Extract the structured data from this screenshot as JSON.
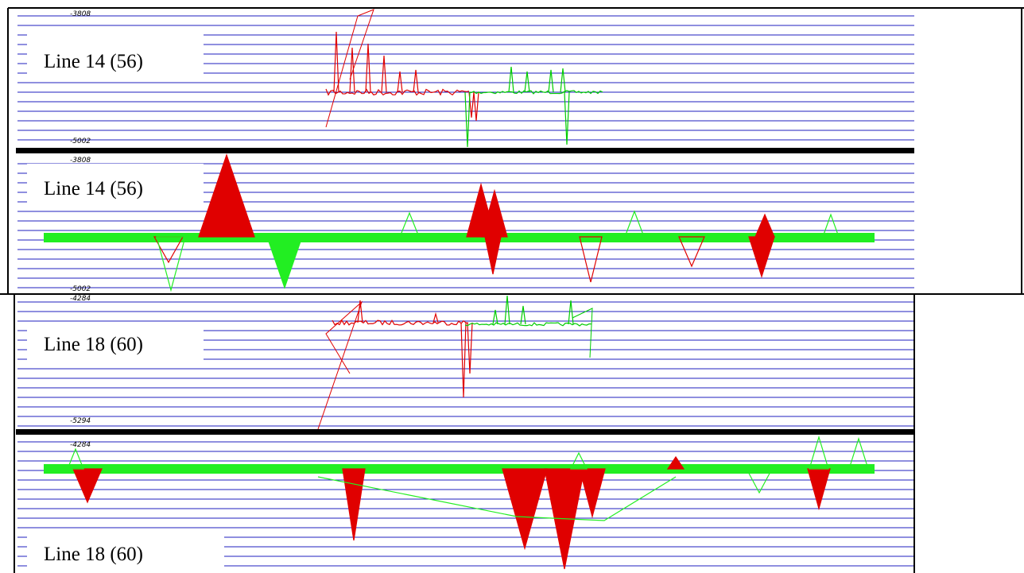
{
  "panels": [
    {
      "top_label": "-3808",
      "bottom_label": "-5002",
      "title": "Line 14 (56)"
    },
    {
      "top_label": "-3808",
      "bottom_label": "-5002",
      "title": "Line 14 (56)"
    },
    {
      "top_label": "-4284",
      "bottom_label": "-5294",
      "title": "Line 18 (60)"
    },
    {
      "top_label": "-4284",
      "bottom_label": "-5294",
      "title": "Line 18 (60)"
    }
  ]
}
